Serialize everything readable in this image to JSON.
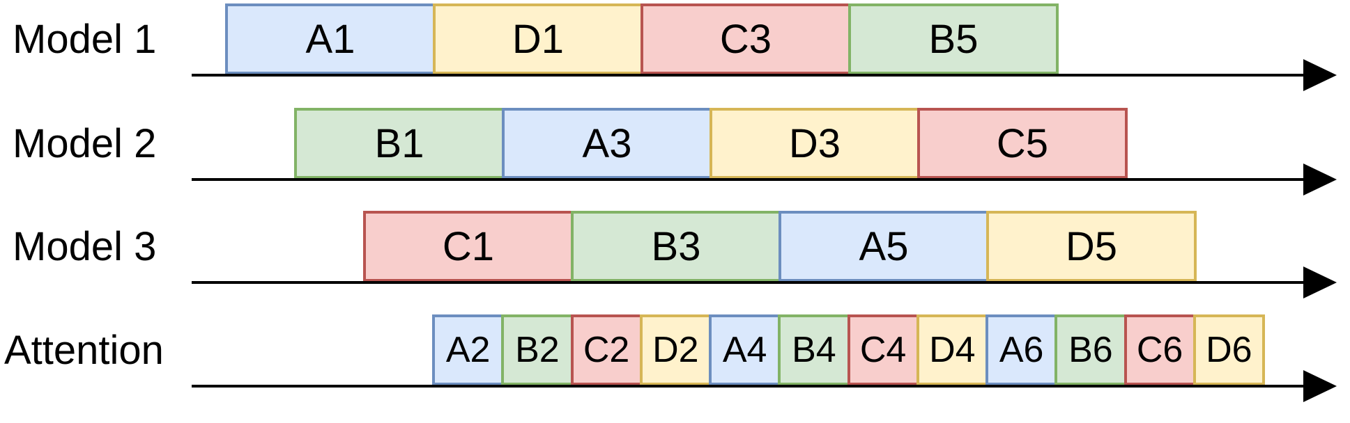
{
  "palette": {
    "A": {
      "fill": "#dae8fc",
      "stroke": "#6c8ebf"
    },
    "B": {
      "fill": "#d5e8d4",
      "stroke": "#82b366"
    },
    "C": {
      "fill": "#f8cecc",
      "stroke": "#b85450"
    },
    "D": {
      "fill": "#fff2cc",
      "stroke": "#d6b656"
    }
  },
  "lanes": [
    {
      "label": "Model 1",
      "blocks": [
        "A1",
        "D1",
        "C3",
        "B5"
      ]
    },
    {
      "label": "Model 2",
      "blocks": [
        "B1",
        "A3",
        "D3",
        "C5"
      ]
    },
    {
      "label": "Model 3",
      "blocks": [
        "C1",
        "B3",
        "A5",
        "D5"
      ]
    },
    {
      "label": "Attention",
      "blocks": [
        "A2",
        "B2",
        "C2",
        "D2",
        "A4",
        "B4",
        "C4",
        "D4",
        "A6",
        "B6",
        "C6",
        "D6"
      ]
    }
  ]
}
